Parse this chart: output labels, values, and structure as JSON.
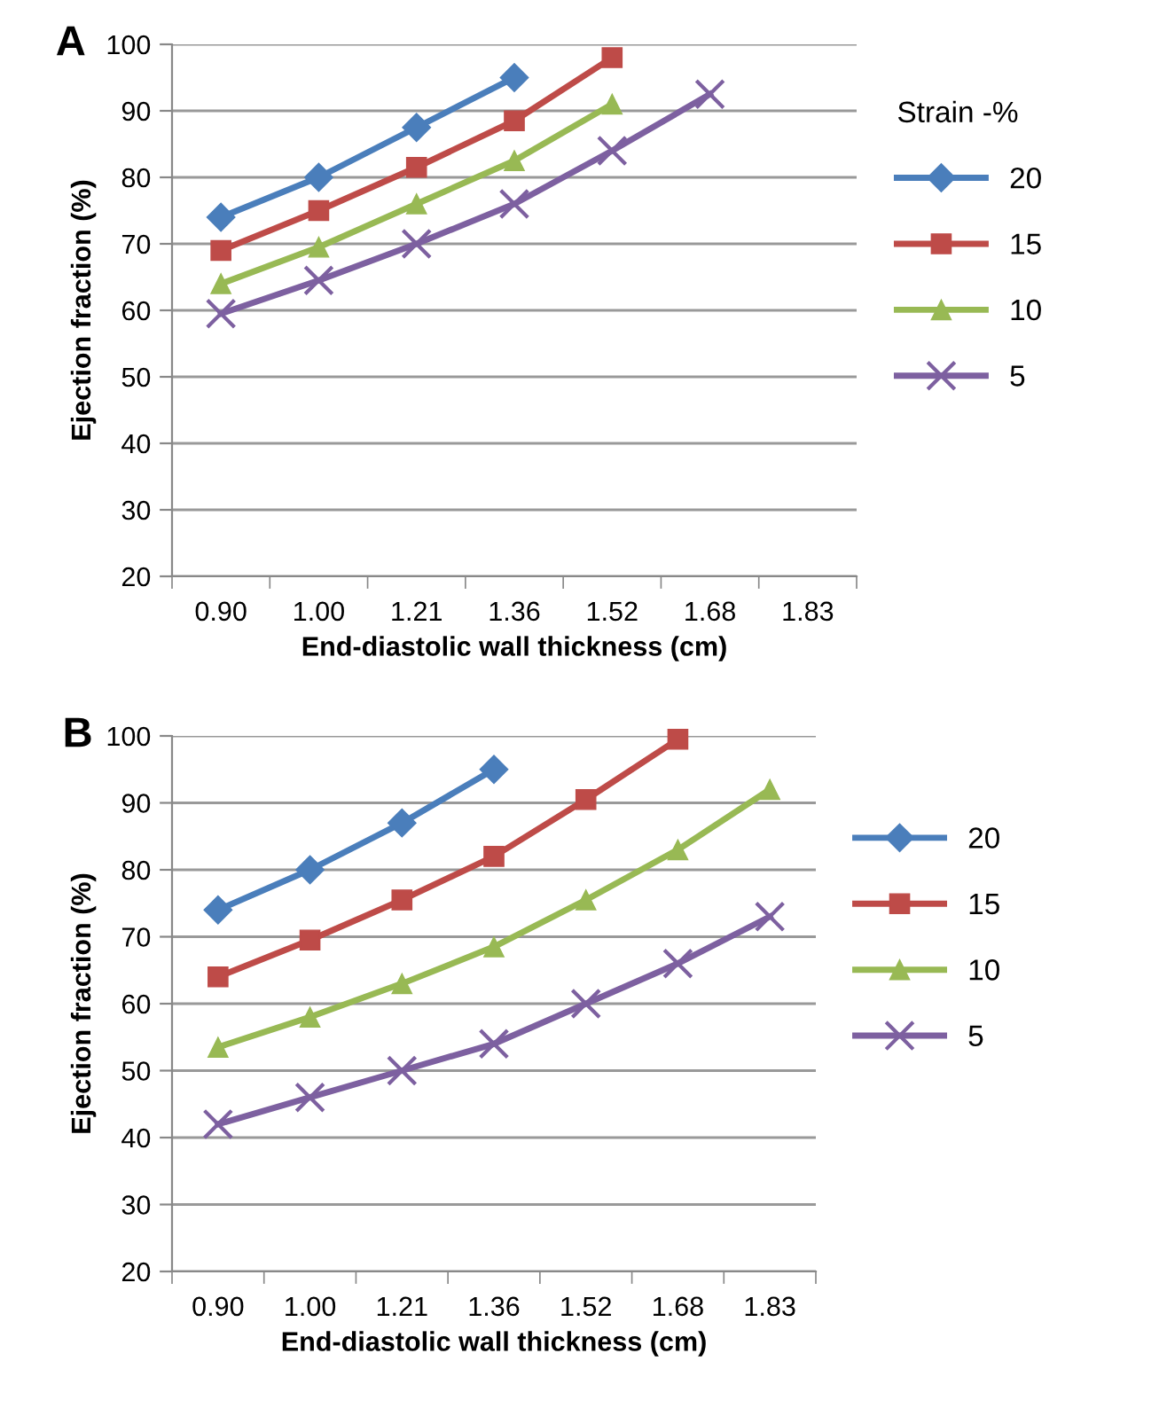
{
  "chart_data": [
    {
      "type": "line",
      "title": "A",
      "xlabel": "End-diastolic wall thickness (cm)",
      "ylabel": "Ejection fraction (%)",
      "legend_title": "Strain -%",
      "categories": [
        "0.90",
        "1.00",
        "1.21",
        "1.36",
        "1.52",
        "1.68",
        "1.83"
      ],
      "ylim": [
        20,
        100
      ],
      "yticks": [
        20,
        30,
        40,
        50,
        60,
        70,
        80,
        90,
        100
      ],
      "grid": "y",
      "legend": "right",
      "line_style": "solid",
      "series": [
        {
          "name": "20",
          "color": "#4a7ebb",
          "marker": "diamond",
          "values": [
            74,
            80,
            87.5,
            95,
            null,
            null,
            null
          ]
        },
        {
          "name": "15",
          "color": "#be4b48",
          "marker": "square",
          "values": [
            69,
            75,
            81.5,
            88.5,
            98,
            null,
            null
          ]
        },
        {
          "name": "10",
          "color": "#98b954",
          "marker": "triangle",
          "values": [
            64,
            69.5,
            76,
            82.5,
            91,
            null,
            null
          ]
        },
        {
          "name": "5",
          "color": "#7d60a0",
          "marker": "cross",
          "values": [
            59.5,
            64.5,
            70,
            76,
            84,
            92.5,
            null
          ]
        }
      ]
    },
    {
      "type": "line",
      "title": "B",
      "xlabel": "End-diastolic wall thickness (cm)",
      "ylabel": "Ejection fraction (%)",
      "categories": [
        "0.90",
        "1.00",
        "1.21",
        "1.36",
        "1.52",
        "1.68",
        "1.83"
      ],
      "ylim": [
        20,
        100
      ],
      "yticks": [
        20,
        30,
        40,
        50,
        60,
        70,
        80,
        90,
        100
      ],
      "grid": "y",
      "legend": "right",
      "line_style": "solid",
      "series": [
        {
          "name": "20",
          "color": "#4a7ebb",
          "marker": "diamond",
          "values": [
            74,
            80,
            87,
            95,
            null,
            null,
            null
          ]
        },
        {
          "name": "15",
          "color": "#be4b48",
          "marker": "square",
          "values": [
            64,
            69.5,
            75.5,
            82,
            90.5,
            99.5,
            null
          ]
        },
        {
          "name": "10",
          "color": "#98b954",
          "marker": "triangle",
          "values": [
            53.5,
            58,
            63,
            68.5,
            75.5,
            83,
            92
          ]
        },
        {
          "name": "5",
          "color": "#7d60a0",
          "marker": "cross",
          "values": [
            42,
            46,
            50,
            54,
            60,
            66,
            73
          ]
        }
      ]
    }
  ]
}
